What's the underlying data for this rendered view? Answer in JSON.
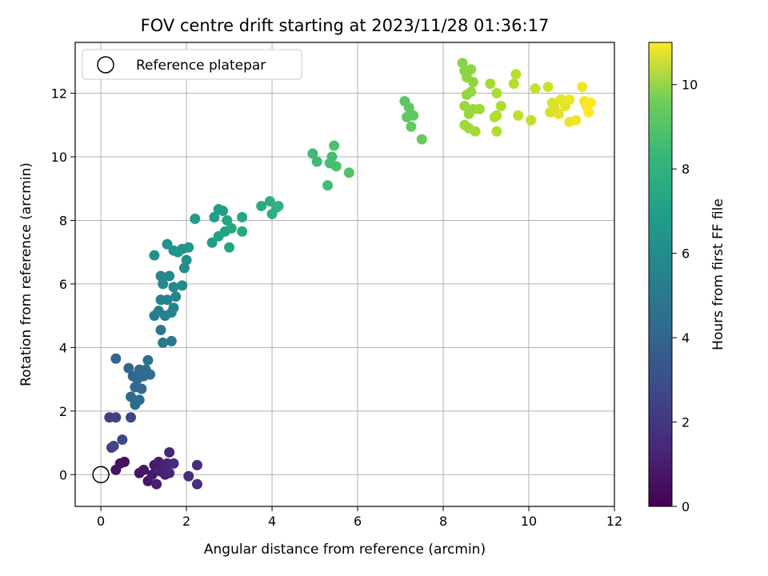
{
  "chart_data": {
    "type": "scatter",
    "title": "FOV centre drift starting at 2023/11/28 01:36:17",
    "xlabel": "Angular distance from reference (arcmin)",
    "ylabel": "Rotation from reference (arcmin)",
    "xlim": [
      -0.6,
      12
    ],
    "ylim": [
      -1,
      13.6
    ],
    "xticks": [
      0,
      2,
      4,
      6,
      8,
      10,
      12
    ],
    "yticks": [
      0,
      2,
      4,
      6,
      8,
      10,
      12
    ],
    "grid": true,
    "legend": {
      "position": "top-left",
      "entries": [
        "Reference platepar"
      ]
    },
    "reference_point": {
      "x": 0,
      "y": 0
    },
    "colorbar": {
      "label": "Hours from first FF file",
      "range": [
        0,
        11
      ],
      "ticks": [
        0,
        2,
        4,
        6,
        8,
        10
      ],
      "colormap": "viridis"
    },
    "points": [
      [
        0.35,
        0.15,
        0.5
      ],
      [
        0.45,
        0.35,
        0.5
      ],
      [
        0.55,
        0.4,
        0.5
      ],
      [
        0.9,
        0.05,
        0.6
      ],
      [
        1.0,
        0.15,
        0.7
      ],
      [
        1.1,
        -0.2,
        0.7
      ],
      [
        1.2,
        0.0,
        0.8
      ],
      [
        1.25,
        0.3,
        0.8
      ],
      [
        1.3,
        -0.3,
        0.9
      ],
      [
        1.35,
        0.4,
        0.9
      ],
      [
        1.4,
        0.1,
        1.0
      ],
      [
        1.45,
        0.25,
        1.0
      ],
      [
        1.5,
        0.0,
        1.1
      ],
      [
        1.55,
        0.35,
        1.1
      ],
      [
        1.6,
        0.05,
        1.2
      ],
      [
        1.6,
        0.7,
        1.2
      ],
      [
        1.7,
        0.35,
        1.3
      ],
      [
        2.05,
        -0.05,
        1.4
      ],
      [
        2.25,
        0.3,
        1.4
      ],
      [
        2.25,
        -0.3,
        1.5
      ],
      [
        0.2,
        1.8,
        2.0
      ],
      [
        0.35,
        1.8,
        2.1
      ],
      [
        0.7,
        1.8,
        2.2
      ],
      [
        0.25,
        0.85,
        2.2
      ],
      [
        0.3,
        0.9,
        2.3
      ],
      [
        0.5,
        1.1,
        2.4
      ],
      [
        0.35,
        3.65,
        3.5
      ],
      [
        0.65,
        3.35,
        3.6
      ],
      [
        0.75,
        3.1,
        3.6
      ],
      [
        0.8,
        2.75,
        3.7
      ],
      [
        0.85,
        3.0,
        3.7
      ],
      [
        0.9,
        3.3,
        3.8
      ],
      [
        0.95,
        2.7,
        3.8
      ],
      [
        1.0,
        3.1,
        3.9
      ],
      [
        1.05,
        3.3,
        3.9
      ],
      [
        1.1,
        3.6,
        4.0
      ],
      [
        1.15,
        3.15,
        4.0
      ],
      [
        0.7,
        2.45,
        3.8
      ],
      [
        0.8,
        2.2,
        3.8
      ],
      [
        0.9,
        2.35,
        3.9
      ],
      [
        1.4,
        4.55,
        4.4
      ],
      [
        1.45,
        4.15,
        4.5
      ],
      [
        1.65,
        4.2,
        4.5
      ],
      [
        1.25,
        5.0,
        4.7
      ],
      [
        1.35,
        5.15,
        4.7
      ],
      [
        1.4,
        5.5,
        4.8
      ],
      [
        1.5,
        5.0,
        4.8
      ],
      [
        1.55,
        5.5,
        4.9
      ],
      [
        1.65,
        5.1,
        4.9
      ],
      [
        1.7,
        5.25,
        5.0
      ],
      [
        1.75,
        5.6,
        5.0
      ],
      [
        1.4,
        6.25,
        5.1
      ],
      [
        1.45,
        6.0,
        5.2
      ],
      [
        1.6,
        6.25,
        5.2
      ],
      [
        1.7,
        5.9,
        5.3
      ],
      [
        1.9,
        5.95,
        5.3
      ],
      [
        1.95,
        6.5,
        5.4
      ],
      [
        2.0,
        6.75,
        5.4
      ],
      [
        1.25,
        6.9,
        5.5
      ],
      [
        1.55,
        7.25,
        5.6
      ],
      [
        1.7,
        7.05,
        5.6
      ],
      [
        1.8,
        7.0,
        5.7
      ],
      [
        1.9,
        7.1,
        5.7
      ],
      [
        2.05,
        7.15,
        5.8
      ],
      [
        2.2,
        8.05,
        6.0
      ],
      [
        2.6,
        7.3,
        6.1
      ],
      [
        2.65,
        8.1,
        6.1
      ],
      [
        2.75,
        8.35,
        6.2
      ],
      [
        2.85,
        8.3,
        6.2
      ],
      [
        2.75,
        7.5,
        6.3
      ],
      [
        2.9,
        7.65,
        6.3
      ],
      [
        2.95,
        8.0,
        6.4
      ],
      [
        3.0,
        7.15,
        6.4
      ],
      [
        3.05,
        7.75,
        6.5
      ],
      [
        3.3,
        8.1,
        6.5
      ],
      [
        3.3,
        7.65,
        6.6
      ],
      [
        3.75,
        8.45,
        6.8
      ],
      [
        3.95,
        8.6,
        6.9
      ],
      [
        4.0,
        8.2,
        6.9
      ],
      [
        4.1,
        8.4,
        7.0
      ],
      [
        4.15,
        8.45,
        7.0
      ],
      [
        4.95,
        10.1,
        7.5
      ],
      [
        5.05,
        9.85,
        7.5
      ],
      [
        5.3,
        9.1,
        7.6
      ],
      [
        5.35,
        9.8,
        7.7
      ],
      [
        5.4,
        10.0,
        7.7
      ],
      [
        5.45,
        10.35,
        7.8
      ],
      [
        5.5,
        9.7,
        7.8
      ],
      [
        5.8,
        9.5,
        7.9
      ],
      [
        7.1,
        11.75,
        8.2
      ],
      [
        7.2,
        11.55,
        8.2
      ],
      [
        7.15,
        11.25,
        8.3
      ],
      [
        7.3,
        11.3,
        8.3
      ],
      [
        7.25,
        10.95,
        8.3
      ],
      [
        7.5,
        10.55,
        8.4
      ],
      [
        8.45,
        12.95,
        9.0
      ],
      [
        8.5,
        12.7,
        9.0
      ],
      [
        8.55,
        12.5,
        9.1
      ],
      [
        8.65,
        12.75,
        9.1
      ],
      [
        8.7,
        12.35,
        9.1
      ],
      [
        8.55,
        11.95,
        9.2
      ],
      [
        8.65,
        12.05,
        9.2
      ],
      [
        8.5,
        11.6,
        9.3
      ],
      [
        8.6,
        11.35,
        9.3
      ],
      [
        8.7,
        11.5,
        9.3
      ],
      [
        8.85,
        11.5,
        9.4
      ],
      [
        8.5,
        11.0,
        9.4
      ],
      [
        8.6,
        10.9,
        9.4
      ],
      [
        8.75,
        10.8,
        9.5
      ],
      [
        9.1,
        12.3,
        9.5
      ],
      [
        9.25,
        12.0,
        9.6
      ],
      [
        9.35,
        11.6,
        9.6
      ],
      [
        9.2,
        11.25,
        9.7
      ],
      [
        9.25,
        11.3,
        9.7
      ],
      [
        9.25,
        10.8,
        9.7
      ],
      [
        9.65,
        12.3,
        9.8
      ],
      [
        9.7,
        12.6,
        9.8
      ],
      [
        9.75,
        11.3,
        9.9
      ],
      [
        10.05,
        11.15,
        10.0
      ],
      [
        10.15,
        12.15,
        10.1
      ],
      [
        10.45,
        12.2,
        10.2
      ],
      [
        10.55,
        11.7,
        10.3
      ],
      [
        10.5,
        11.4,
        10.3
      ],
      [
        10.6,
        11.55,
        10.4
      ],
      [
        10.7,
        11.35,
        10.5
      ],
      [
        10.75,
        11.8,
        10.6
      ],
      [
        10.85,
        11.6,
        10.6
      ],
      [
        10.95,
        11.8,
        10.7
      ],
      [
        10.95,
        11.1,
        10.7
      ],
      [
        11.1,
        11.15,
        10.8
      ],
      [
        11.25,
        12.2,
        10.8
      ],
      [
        11.3,
        11.75,
        10.9
      ],
      [
        11.35,
        11.6,
        10.9
      ],
      [
        11.4,
        11.4,
        11.0
      ],
      [
        11.45,
        11.7,
        11.0
      ]
    ]
  }
}
